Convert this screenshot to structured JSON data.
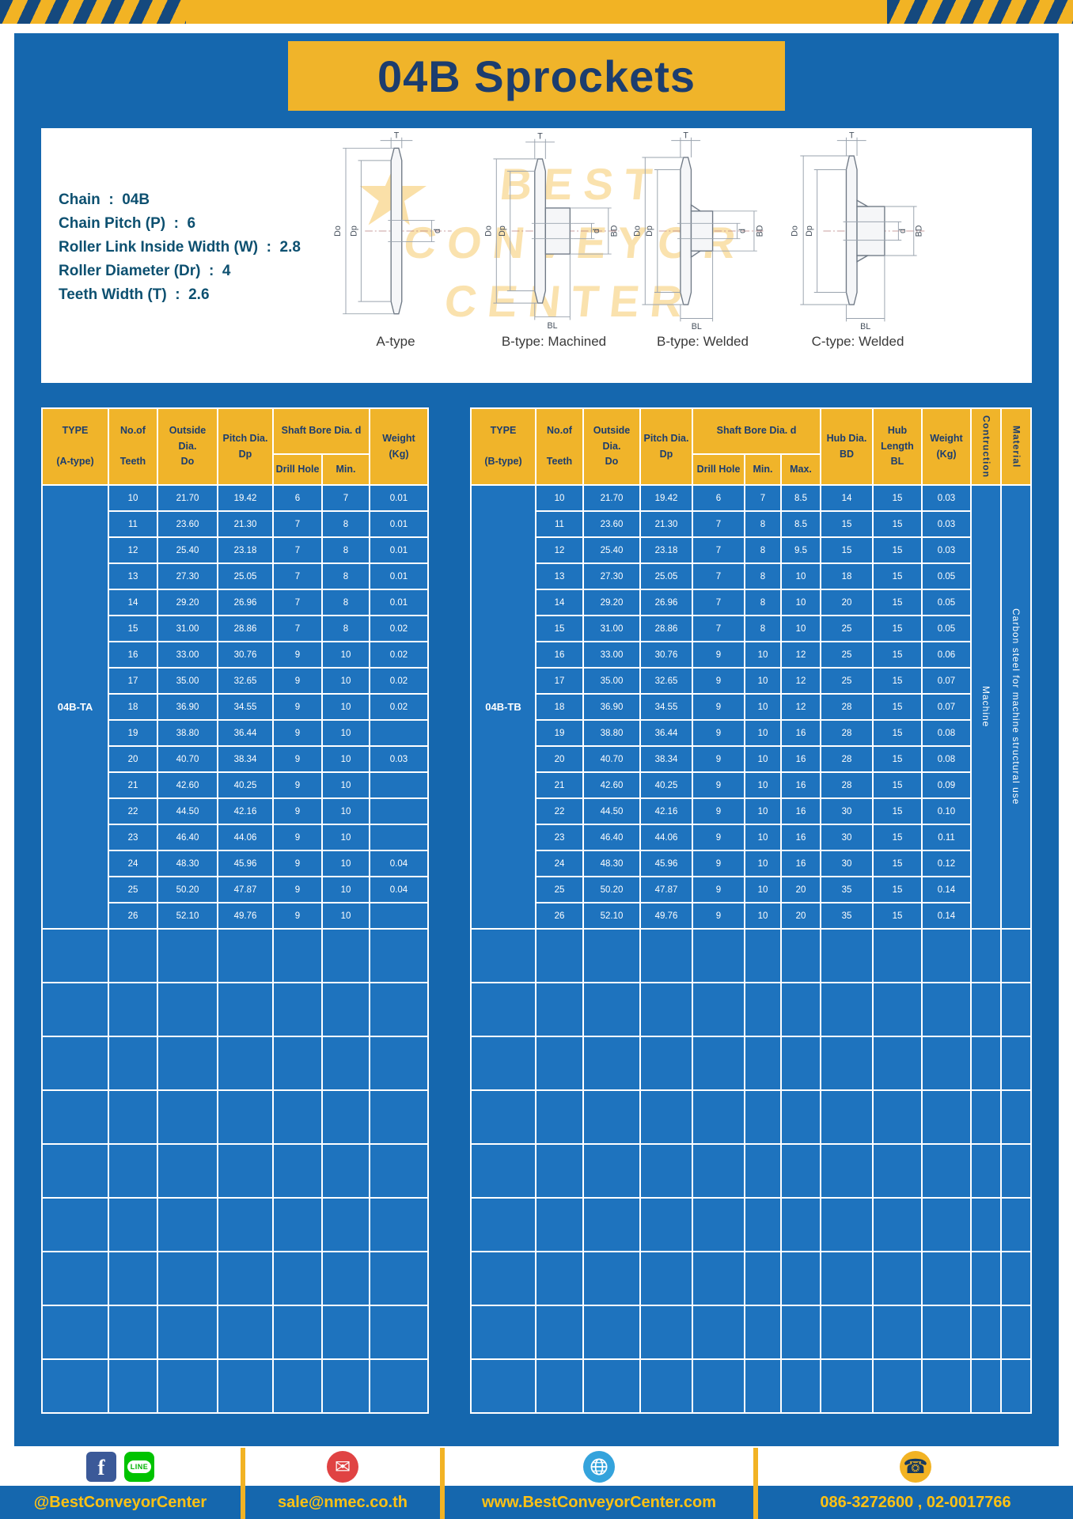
{
  "title": "04B Sprockets",
  "specs": {
    "lines": [
      "Chain  :  04B",
      "Chain Pitch (P)  :  6",
      "Roller Link Inside Width (W)  :  2.8",
      "Roller Diameter (Dr)  :  4",
      "Teeth Width (T)  :  2.6"
    ]
  },
  "drawings": {
    "watermark": [
      "BEST",
      "CONVEYOR",
      "CENTER"
    ],
    "star": "★",
    "captions": [
      "A-type",
      "B-type: Machined",
      "B-type: Welded",
      "C-type: Welded"
    ],
    "dims": {
      "t": "T",
      "outside": "Do",
      "pitch": "Dp",
      "bore": "d",
      "hub": "BD",
      "length": "BL"
    }
  },
  "table_a": {
    "headers": {
      "type": "TYPE\n\n(A-type)",
      "teeth": "No.of\n\nTeeth",
      "outside": "Outside\nDia.\nDo",
      "pitch": "Pitch Dia.\nDp",
      "shaft": "Shaft Bore Dia. d",
      "drill": "Drill Hole",
      "min": "Min.",
      "weight": "Weight\n(Kg)"
    },
    "type_value": "04B-TA",
    "empty_rows": 9,
    "rows": [
      [
        "10",
        "21.70",
        "19.42",
        "6",
        "7",
        "0.01"
      ],
      [
        "11",
        "23.60",
        "21.30",
        "7",
        "8",
        "0.01"
      ],
      [
        "12",
        "25.40",
        "23.18",
        "7",
        "8",
        "0.01"
      ],
      [
        "13",
        "27.30",
        "25.05",
        "7",
        "8",
        "0.01"
      ],
      [
        "14",
        "29.20",
        "26.96",
        "7",
        "8",
        "0.01"
      ],
      [
        "15",
        "31.00",
        "28.86",
        "7",
        "8",
        "0.02"
      ],
      [
        "16",
        "33.00",
        "30.76",
        "9",
        "10",
        "0.02"
      ],
      [
        "17",
        "35.00",
        "32.65",
        "9",
        "10",
        "0.02"
      ],
      [
        "18",
        "36.90",
        "34.55",
        "9",
        "10",
        "0.02"
      ],
      [
        "19",
        "38.80",
        "36.44",
        "9",
        "10",
        ""
      ],
      [
        "20",
        "40.70",
        "38.34",
        "9",
        "10",
        "0.03"
      ],
      [
        "21",
        "42.60",
        "40.25",
        "9",
        "10",
        ""
      ],
      [
        "22",
        "44.50",
        "42.16",
        "9",
        "10",
        ""
      ],
      [
        "23",
        "46.40",
        "44.06",
        "9",
        "10",
        ""
      ],
      [
        "24",
        "48.30",
        "45.96",
        "9",
        "10",
        "0.04"
      ],
      [
        "25",
        "50.20",
        "47.87",
        "9",
        "10",
        "0.04"
      ],
      [
        "26",
        "52.10",
        "49.76",
        "9",
        "10",
        ""
      ]
    ]
  },
  "table_b": {
    "headers": {
      "type": "TYPE\n\n(B-type)",
      "teeth": "No.of\n\nTeeth",
      "outside": "Outside\nDia.\nDo",
      "pitch": "Pitch Dia.\nDp",
      "shaft": "Shaft Bore Dia. d",
      "drill": "Drill Hole",
      "min": "Min.",
      "max": "Max.",
      "hub_dia": "Hub Dia.\nBD",
      "hub_len": "Hub\nLength\nBL",
      "weight": "Weight\n(Kg)",
      "construction": "Contruction",
      "material": "Material"
    },
    "type_value": "04B-TB",
    "construction_value": "Machine",
    "material_value": "Carbon steel for machine structural use",
    "empty_rows": 9,
    "rows": [
      [
        "10",
        "21.70",
        "19.42",
        "6",
        "7",
        "8.5",
        "14",
        "15",
        "0.03"
      ],
      [
        "11",
        "23.60",
        "21.30",
        "7",
        "8",
        "8.5",
        "15",
        "15",
        "0.03"
      ],
      [
        "12",
        "25.40",
        "23.18",
        "7",
        "8",
        "9.5",
        "15",
        "15",
        "0.03"
      ],
      [
        "13",
        "27.30",
        "25.05",
        "7",
        "8",
        "10",
        "18",
        "15",
        "0.05"
      ],
      [
        "14",
        "29.20",
        "26.96",
        "7",
        "8",
        "10",
        "20",
        "15",
        "0.05"
      ],
      [
        "15",
        "31.00",
        "28.86",
        "7",
        "8",
        "10",
        "25",
        "15",
        "0.05"
      ],
      [
        "16",
        "33.00",
        "30.76",
        "9",
        "10",
        "12",
        "25",
        "15",
        "0.06"
      ],
      [
        "17",
        "35.00",
        "32.65",
        "9",
        "10",
        "12",
        "25",
        "15",
        "0.07"
      ],
      [
        "18",
        "36.90",
        "34.55",
        "9",
        "10",
        "12",
        "28",
        "15",
        "0.07"
      ],
      [
        "19",
        "38.80",
        "36.44",
        "9",
        "10",
        "16",
        "28",
        "15",
        "0.08"
      ],
      [
        "20",
        "40.70",
        "38.34",
        "9",
        "10",
        "16",
        "28",
        "15",
        "0.08"
      ],
      [
        "21",
        "42.60",
        "40.25",
        "9",
        "10",
        "16",
        "28",
        "15",
        "0.09"
      ],
      [
        "22",
        "44.50",
        "42.16",
        "9",
        "10",
        "16",
        "30",
        "15",
        "0.10"
      ],
      [
        "23",
        "46.40",
        "44.06",
        "9",
        "10",
        "16",
        "30",
        "15",
        "0.11"
      ],
      [
        "24",
        "48.30",
        "45.96",
        "9",
        "10",
        "16",
        "30",
        "15",
        "0.12"
      ],
      [
        "25",
        "50.20",
        "47.87",
        "9",
        "10",
        "20",
        "35",
        "15",
        "0.14"
      ],
      [
        "26",
        "52.10",
        "49.76",
        "9",
        "10",
        "20",
        "35",
        "15",
        "0.14"
      ]
    ]
  },
  "footer": {
    "facebook_glyph": "f",
    "line_text": "LINE",
    "mail_glyph": "✉",
    "phone_glyph": "☎",
    "items": [
      {
        "label": "@BestConveyorCenter"
      },
      {
        "label": "sale@nmec.co.th"
      },
      {
        "label": "www.BestConveyorCenter.com"
      },
      {
        "label": "086-3272600 , 02-0017766"
      }
    ]
  }
}
